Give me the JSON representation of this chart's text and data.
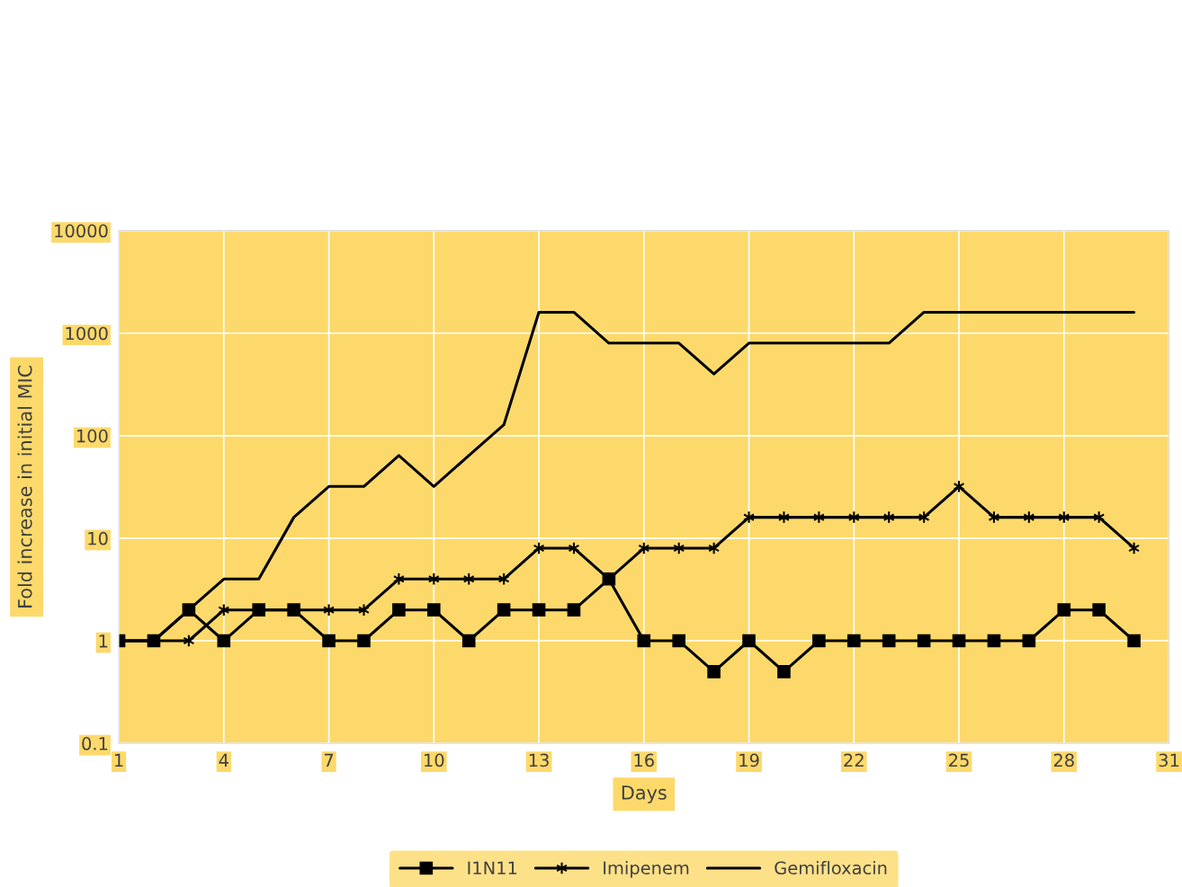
{
  "chart_data": {
    "type": "line",
    "xlabel": "Days",
    "ylabel": "Fold increase in initial MIC",
    "log": "y",
    "x": [
      1,
      2,
      3,
      4,
      5,
      6,
      7,
      8,
      9,
      10,
      11,
      12,
      13,
      14,
      15,
      16,
      17,
      18,
      19,
      20,
      21,
      22,
      23,
      24,
      25,
      26,
      27,
      28,
      29,
      30
    ],
    "series": [
      {
        "name": "I1N11",
        "color": "#000000",
        "marker": "square",
        "values": [
          1,
          1,
          2,
          1,
          2,
          2,
          1,
          1,
          2,
          2,
          1,
          2,
          2,
          2,
          4,
          1,
          1,
          0.5,
          1,
          0.5,
          1,
          1,
          1,
          1,
          1,
          1,
          1,
          2,
          2,
          1
        ]
      },
      {
        "name": "Imipenem",
        "color": "#000000",
        "marker": "cross",
        "values": [
          1,
          1,
          1,
          2,
          2,
          2,
          2,
          2,
          4,
          4,
          4,
          4,
          8,
          8,
          4,
          8,
          8,
          8,
          16,
          16,
          16,
          16,
          16,
          16,
          32,
          16,
          16,
          16,
          16,
          8
        ]
      },
      {
        "name": "Gemifloxacin",
        "color": "#000000",
        "marker": "none",
        "values": [
          1,
          1,
          2,
          4,
          4,
          16,
          32,
          32,
          64,
          32,
          64,
          128,
          1600,
          1600,
          800,
          800,
          800,
          400,
          800,
          800,
          800,
          800,
          800,
          1600,
          1600,
          1600,
          1600,
          1600,
          1600,
          1600
        ]
      }
    ],
    "xlim": [
      1,
      31
    ],
    "xticks": [
      1,
      4,
      7,
      10,
      13,
      16,
      19,
      22,
      25,
      28,
      31
    ],
    "ylim": [
      0.1,
      10000
    ],
    "yticks": [
      0.1,
      1,
      10,
      100,
      1000,
      10000
    ],
    "grid": true,
    "legend": "bottom",
    "line_style": "solid"
  }
}
